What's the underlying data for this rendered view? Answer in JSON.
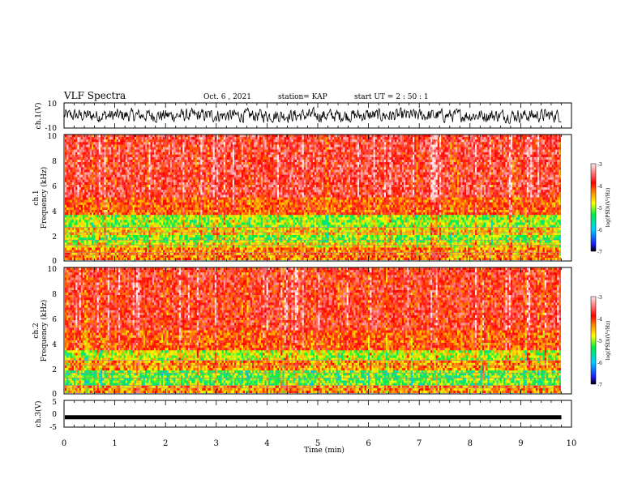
{
  "header": {
    "title": "VLF Spectra",
    "date": "Oct. 6 , 2021",
    "station": "station= KAP",
    "start": "start UT = 2 : 50 : 1"
  },
  "chart_data": [
    {
      "type": "line",
      "ylabel": "ch.1(V)",
      "ylim": [
        -10,
        10
      ],
      "y_ticks": [
        "10",
        "-10"
      ],
      "xlim": [
        0,
        10
      ],
      "series_color": "#000000",
      "note": "dense noisy waveform between about -7 and 7 V"
    },
    {
      "type": "heatmap",
      "ylabel_line1": "ch.1",
      "ylabel_line2": "Frequency (kHz)",
      "ylim": [
        0,
        10
      ],
      "y_ticks": [
        "0",
        "2",
        "4",
        "6",
        "8",
        "10"
      ],
      "xlim": [
        0,
        9.8
      ],
      "colorbar": {
        "label": "log(PSD)(V²/Hz)",
        "range": [
          -7,
          -3
        ],
        "ticks": [
          "-3",
          "-4",
          "-5",
          "-6",
          "-7"
        ]
      },
      "bands": [
        {
          "from": 0,
          "to": 0.9,
          "level": -4.3
        },
        {
          "from": 0.9,
          "to": 1.4,
          "level": -4.7
        },
        {
          "from": 1.4,
          "to": 2.0,
          "level": -5.1
        },
        {
          "from": 2.0,
          "to": 2.6,
          "level": -4.6
        },
        {
          "from": 2.6,
          "to": 3.6,
          "level": -5.0
        },
        {
          "from": 3.6,
          "to": 5.0,
          "level": -4.1
        },
        {
          "from": 5.0,
          "to": 10.0,
          "level": -3.7
        }
      ]
    },
    {
      "type": "heatmap",
      "ylabel_line1": "ch.2",
      "ylabel_line2": "Frequency (kHz)",
      "ylim": [
        0,
        10
      ],
      "y_ticks": [
        "0",
        "2",
        "4",
        "6",
        "8",
        "10"
      ],
      "xlim": [
        0,
        9.8
      ],
      "colorbar": {
        "label": "log(PSD)(V²/Hz)",
        "range": [
          -7,
          -3
        ],
        "ticks": [
          "-3",
          "-4",
          "-5",
          "-6",
          "-7"
        ]
      },
      "bands": [
        {
          "from": 0,
          "to": 0.5,
          "level": -4.4
        },
        {
          "from": 0.5,
          "to": 1.8,
          "level": -5.2
        },
        {
          "from": 1.8,
          "to": 2.5,
          "level": -4.4
        },
        {
          "from": 2.5,
          "to": 3.4,
          "level": -4.9
        },
        {
          "from": 3.4,
          "to": 5.0,
          "level": -4.1
        },
        {
          "from": 5.0,
          "to": 10.0,
          "level": -3.8
        }
      ]
    },
    {
      "type": "line",
      "ylabel": "ch.3(V)",
      "ylim": [
        -5,
        5
      ],
      "y_ticks": [
        "5",
        "0",
        "-5"
      ],
      "xlim": [
        0,
        9.8
      ],
      "level": -1.3,
      "series_color": "#000000"
    }
  ],
  "x_axis": {
    "label": "Time (min)",
    "range": [
      0,
      10
    ],
    "ticks": [
      "0",
      "1",
      "2",
      "3",
      "4",
      "5",
      "6",
      "7",
      "8",
      "9",
      "10"
    ]
  }
}
